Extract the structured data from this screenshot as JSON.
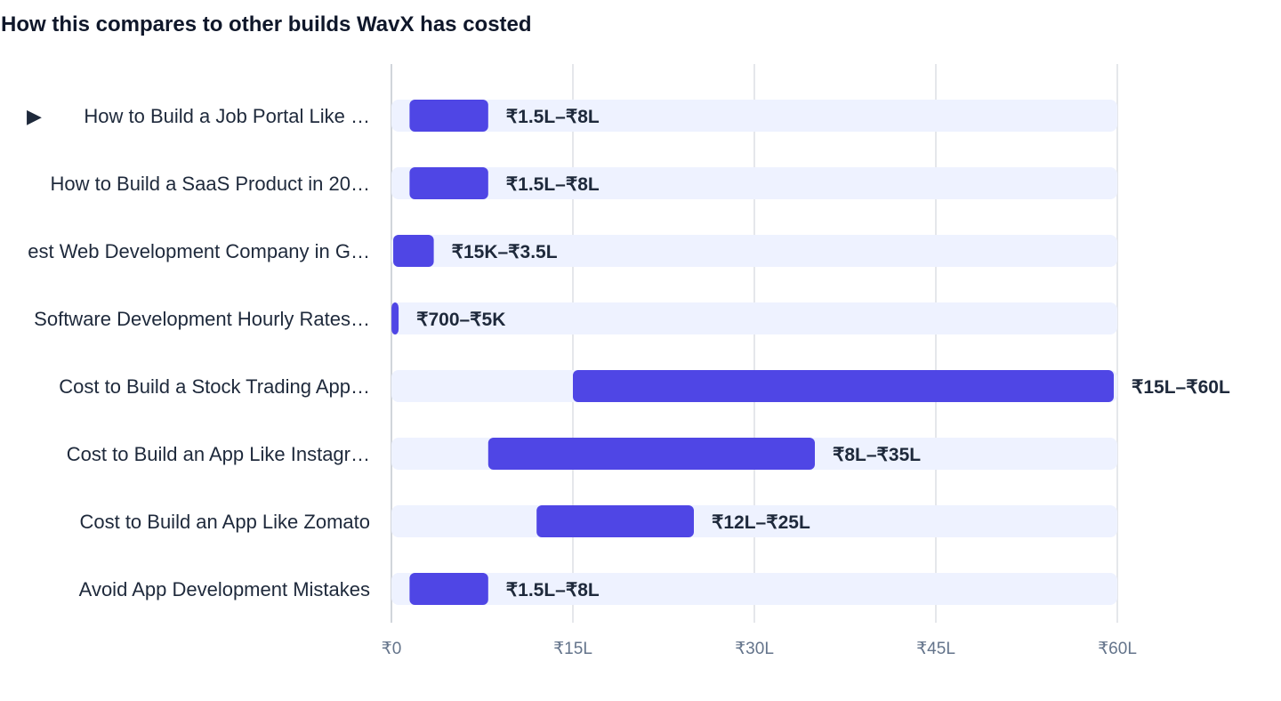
{
  "chart_data": {
    "type": "bar",
    "title": "How this compares to other builds WavX has costed",
    "xlabel": "",
    "ylabel": "",
    "unit": "₹ Lakh",
    "xlim": [
      0,
      60
    ],
    "x_ticks": [
      0,
      15,
      30,
      45,
      60
    ],
    "x_tick_labels": [
      "₹0",
      "₹15L",
      "₹30L",
      "₹45L",
      "₹60L"
    ],
    "grid": true,
    "highlight_marker": "▶",
    "categories": [
      "How to Build a Job Portal Like …",
      "How to Build a SaaS Product in 20…",
      "est Web Development Company in G…",
      "Software Development Hourly Rates…",
      "Cost to Build a Stock Trading App…",
      "Cost to Build an App Like Instagr…",
      "Cost to Build an App Like Zomato",
      "Avoid App Development Mistakes"
    ],
    "highlighted": [
      true,
      false,
      false,
      false,
      false,
      false,
      false,
      false
    ],
    "ranges": [
      {
        "low": 1.5,
        "high": 8
      },
      {
        "low": 1.5,
        "high": 8
      },
      {
        "low": 0.15,
        "high": 3.5
      },
      {
        "low": 0.007,
        "high": 0.05
      },
      {
        "low": 15,
        "high": 60
      },
      {
        "low": 8,
        "high": 35
      },
      {
        "low": 12,
        "high": 25
      },
      {
        "low": 1.5,
        "high": 8
      }
    ],
    "range_labels": [
      "₹1.5L–₹8L",
      "₹1.5L–₹8L",
      "₹15K–₹3.5L",
      "₹700–₹5K",
      "₹15L–₹60L",
      "₹8L–₹35L",
      "₹12L–₹25L",
      "₹1.5L–₹8L"
    ],
    "colors": {
      "bar": "#4f46e5",
      "track": "#eef2ff",
      "grid": "#e5e7eb",
      "axis": "#d1d5db",
      "text": "#1e293b",
      "tick_text": "#64748b"
    }
  }
}
